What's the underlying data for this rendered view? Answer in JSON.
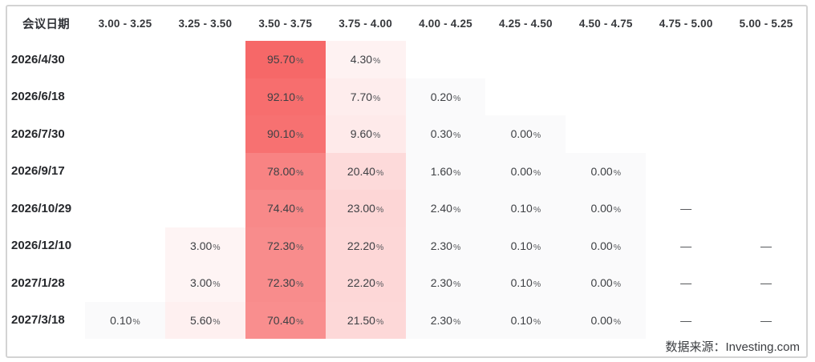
{
  "card": {
    "source_label": "数据来源：Investing.com"
  },
  "chart_data": {
    "type": "heatmap",
    "title": "",
    "corner_header": "会议日期",
    "columns": [
      "3.00 - 3.25",
      "3.25 - 3.50",
      "3.50 - 3.75",
      "3.75 - 4.00",
      "4.00 - 4.25",
      "4.25 - 4.50",
      "4.50 - 4.75",
      "4.75 - 5.00",
      "5.00 - 5.25"
    ],
    "rows": [
      {
        "date": "2026/4/30",
        "values": [
          null,
          null,
          95.7,
          4.3,
          null,
          null,
          null,
          null,
          null
        ]
      },
      {
        "date": "2026/6/18",
        "values": [
          null,
          null,
          92.1,
          7.7,
          0.2,
          null,
          null,
          null,
          null
        ]
      },
      {
        "date": "2026/7/30",
        "values": [
          null,
          null,
          90.1,
          9.6,
          0.3,
          0.0,
          null,
          null,
          null
        ]
      },
      {
        "date": "2026/9/17",
        "values": [
          null,
          null,
          78.0,
          20.4,
          1.6,
          0.0,
          0.0,
          null,
          null
        ]
      },
      {
        "date": "2026/10/29",
        "values": [
          null,
          null,
          74.4,
          23.0,
          2.4,
          0.1,
          0.0,
          "—",
          null
        ]
      },
      {
        "date": "2026/12/10",
        "values": [
          null,
          3.0,
          72.3,
          22.2,
          2.3,
          0.1,
          0.0,
          "—",
          "—"
        ]
      },
      {
        "date": "2027/1/28",
        "values": [
          null,
          3.0,
          72.3,
          22.2,
          2.3,
          0.1,
          0.0,
          "—",
          "—"
        ]
      },
      {
        "date": "2027/3/18",
        "values": [
          0.1,
          5.6,
          70.4,
          21.5,
          2.3,
          0.1,
          0.0,
          "—",
          "—"
        ]
      }
    ],
    "value_unit": "%",
    "no_data_marker": "—",
    "heat_base_color": "#f66060",
    "low_value_color": "#fafafb",
    "legend_position": "none",
    "grid": false
  }
}
